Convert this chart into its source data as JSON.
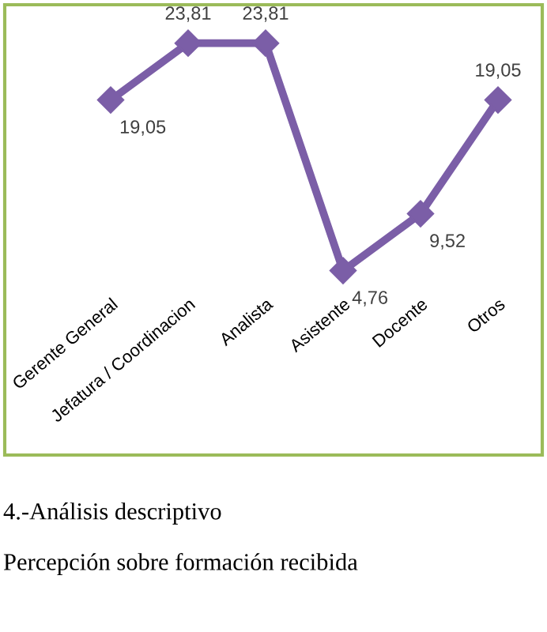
{
  "chart_data": {
    "type": "line",
    "categories": [
      "Gerente General",
      "Jefatura / Coordinacion",
      "Analista",
      "Asistente",
      "Docente",
      "Otros"
    ],
    "series": [
      {
        "color": "#7b5ea7",
        "values": [
          19.05,
          23.81,
          23.81,
          4.76,
          9.52,
          19.05
        ],
        "value_labels": [
          "19,05",
          "23,81",
          "23,81",
          "4,76",
          "9,52",
          "19,05"
        ]
      }
    ],
    "marker": "diamond",
    "line_style": "solid",
    "grid": false,
    "legend": false,
    "tick_labels": "x",
    "annotations": [
      "4.-Análisis descriptivo",
      "Percepción sobre formación recibida"
    ]
  }
}
